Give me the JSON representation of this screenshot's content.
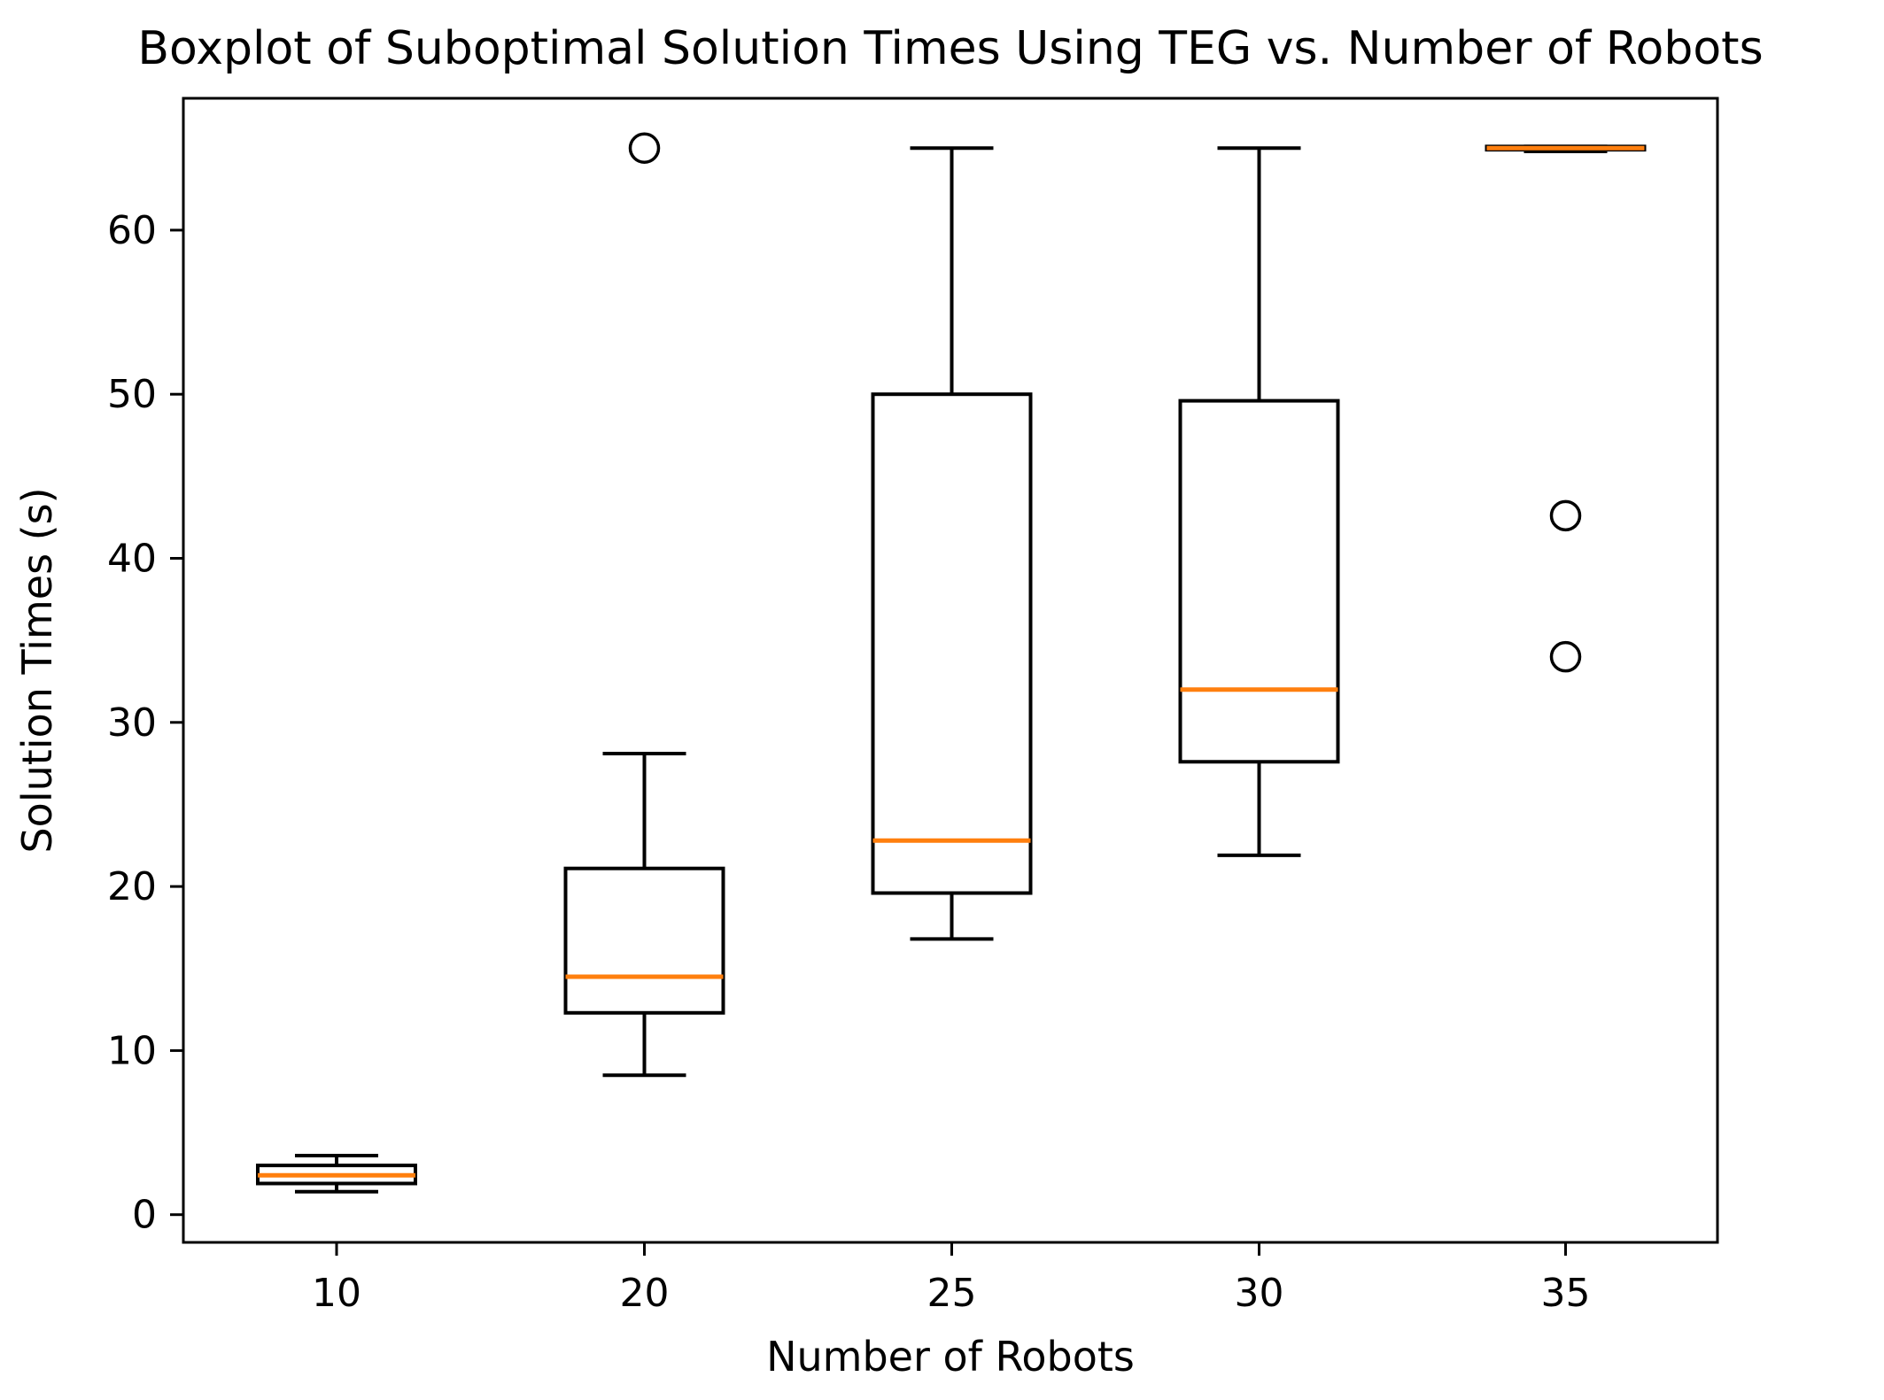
{
  "figure": {
    "background_color": "#ffffff",
    "title": "Boxplot of Suboptimal Solution Times Using TEG vs. Number of Robots"
  },
  "chart_data": {
    "type": "boxplot",
    "title": "Boxplot of Suboptimal Solution Times Using TEG vs. Number of Robots",
    "xlabel": "Number of Robots",
    "ylabel": "Solution Times (s)",
    "categories": [
      "10",
      "20",
      "25",
      "30",
      "35"
    ],
    "y_ticks": [
      0,
      10,
      20,
      30,
      40,
      50,
      60
    ],
    "ylim": [
      -1.7,
      68.0
    ],
    "grid": false,
    "legend": "none",
    "boxes": [
      {
        "category": "10",
        "whisker_low": 1.4,
        "q1": 1.9,
        "median": 2.4,
        "q3": 3.0,
        "whisker_high": 3.6,
        "outliers": []
      },
      {
        "category": "20",
        "whisker_low": 8.5,
        "q1": 12.3,
        "median": 14.5,
        "q3": 21.1,
        "whisker_high": 28.1,
        "outliers": [
          65.0
        ]
      },
      {
        "category": "25",
        "whisker_low": 16.8,
        "q1": 19.6,
        "median": 22.8,
        "q3": 50.0,
        "whisker_high": 65.0,
        "outliers": []
      },
      {
        "category": "30",
        "whisker_low": 21.9,
        "q1": 27.6,
        "median": 32.0,
        "q3": 49.6,
        "whisker_high": 65.0,
        "outliers": []
      },
      {
        "category": "35",
        "whisker_low": 64.8,
        "q1": 64.9,
        "median": 65.0,
        "q3": 65.1,
        "whisker_high": 65.1,
        "outliers": [
          42.6,
          34.0
        ]
      }
    ],
    "colors": {
      "median_line": "#ff7f0e",
      "box_edge": "#000000",
      "whisker": "#000000",
      "outlier_edge": "#000000",
      "background": "#ffffff"
    }
  }
}
